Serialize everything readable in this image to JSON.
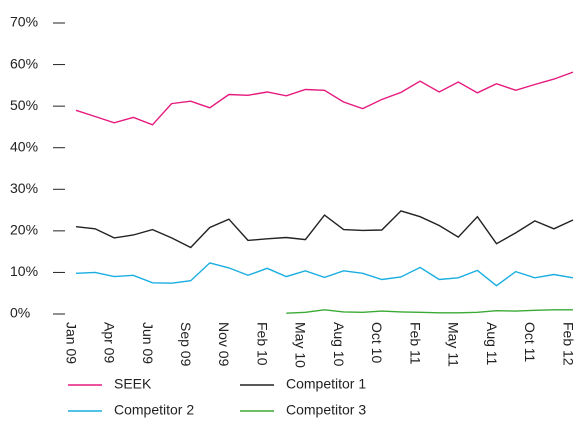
{
  "chart_data": {
    "type": "line",
    "categories": [
      "Jan 09",
      null,
      "Apr 09",
      null,
      "Jun 09",
      null,
      "Sep 09",
      null,
      "Nov 09",
      null,
      "Feb 10",
      null,
      "May 10",
      null,
      "Aug 10",
      null,
      "Oct 10",
      null,
      "Feb 11",
      null,
      "May 11",
      null,
      "Aug 11",
      null,
      "Oct 11",
      null,
      "Feb 12"
    ],
    "series": [
      {
        "name": "SEEK",
        "color": "#e5197e",
        "values": [
          49,
          47.5,
          46,
          47.3,
          45.5,
          50.6,
          51.2,
          49.6,
          52.8,
          52.6,
          53.4,
          52.5,
          54,
          53.8,
          51,
          49.4,
          51.6,
          53.3,
          56,
          53.4,
          55.8,
          53.2,
          55.4,
          53.8,
          55.2,
          56.5,
          58.2
        ]
      },
      {
        "name": "Competitor 1",
        "color": "#222222",
        "values": [
          21,
          20.5,
          18.3,
          19,
          20.3,
          18.3,
          16,
          20.8,
          22.8,
          17.7,
          18.1,
          18.4,
          17.9,
          23.8,
          20.3,
          20.1,
          20.2,
          24.8,
          23.4,
          21.3,
          18.5,
          23.4,
          16.9,
          19.5,
          22.4,
          20.5,
          22.6
        ]
      },
      {
        "name": "Competitor 2",
        "color": "#1aaee0",
        "values": [
          9.8,
          10,
          9,
          9.3,
          7.5,
          7.4,
          8,
          12.3,
          11.1,
          9.3,
          11,
          9,
          10.4,
          8.8,
          10.4,
          9.8,
          8.3,
          8.9,
          11.2,
          8.3,
          8.7,
          10.5,
          6.8,
          10.2,
          8.7,
          9.5,
          8.7
        ]
      },
      {
        "name": "Competitor 3",
        "color": "#3aaa35",
        "values": [
          null,
          null,
          null,
          null,
          null,
          null,
          null,
          null,
          null,
          null,
          null,
          0.2,
          0.4,
          1,
          0.5,
          0.4,
          0.7,
          0.5,
          0.4,
          0.3,
          0.3,
          0.4,
          0.8,
          0.7,
          0.9,
          1,
          1
        ]
      }
    ],
    "ylim": [
      0,
      70
    ],
    "yticks": [
      {
        "value": 0,
        "label": "0%"
      },
      {
        "value": 10,
        "label": "10%"
      },
      {
        "value": 20,
        "label": "20%"
      },
      {
        "value": 30,
        "label": "30%"
      },
      {
        "value": 40,
        "label": "40%"
      },
      {
        "value": 50,
        "label": "50%"
      },
      {
        "value": 60,
        "label": "60%"
      },
      {
        "value": 70,
        "label": "70%"
      }
    ]
  }
}
